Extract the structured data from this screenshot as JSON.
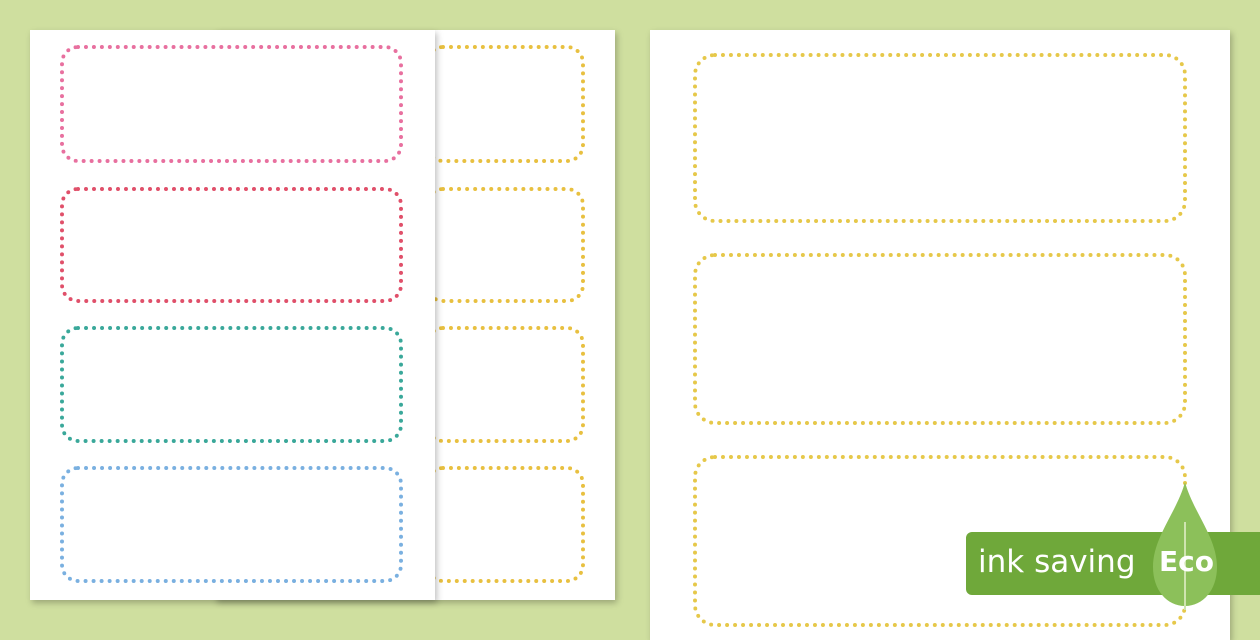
{
  "badge": {
    "text": "ink saving",
    "eco": "Eco",
    "color": "#6fa83a"
  },
  "colors": {
    "background": "#cfdf9f",
    "front_borders": [
      "#e8709f",
      "#e0506a",
      "#3aa89a",
      "#7ab0e0"
    ],
    "back_borders": "#e8c040",
    "right_borders": "#e6c84a"
  }
}
